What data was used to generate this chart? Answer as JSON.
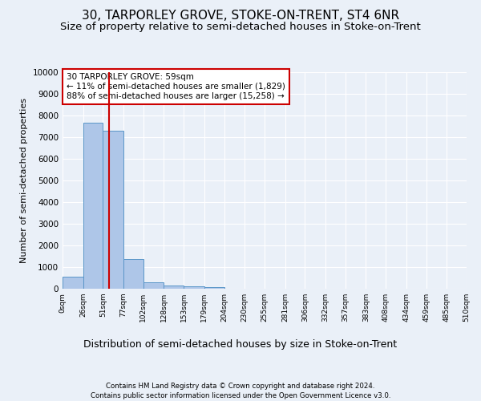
{
  "title1": "30, TARPORLEY GROVE, STOKE-ON-TRENT, ST4 6NR",
  "title2": "Size of property relative to semi-detached houses in Stoke-on-Trent",
  "xlabel": "Distribution of semi-detached houses by size in Stoke-on-Trent",
  "ylabel": "Number of semi-detached properties",
  "footer1": "Contains HM Land Registry data © Crown copyright and database right 2024.",
  "footer2": "Contains public sector information licensed under the Open Government Licence v3.0.",
  "bar_edges": [
    0,
    26,
    51,
    77,
    102,
    128,
    153,
    179,
    204,
    230,
    255,
    281,
    306,
    332,
    357,
    383,
    408,
    434,
    459,
    485,
    510
  ],
  "bar_heights": [
    550,
    7650,
    7280,
    1360,
    310,
    155,
    110,
    80,
    0,
    0,
    0,
    0,
    0,
    0,
    0,
    0,
    0,
    0,
    0,
    0
  ],
  "bar_color": "#aec6e8",
  "bar_edgecolor": "#5a96c8",
  "property_size": 59,
  "vline_color": "#cc0000",
  "annotation_text": "30 TARPORLEY GROVE: 59sqm\n← 11% of semi-detached houses are smaller (1,829)\n88% of semi-detached houses are larger (15,258) →",
  "annotation_box_color": "#ffffff",
  "annotation_border_color": "#cc0000",
  "ylim": [
    0,
    10000
  ],
  "yticks": [
    0,
    1000,
    2000,
    3000,
    4000,
    5000,
    6000,
    7000,
    8000,
    9000,
    10000
  ],
  "bg_color": "#eaf0f8",
  "plot_bg_color": "#eaf0f8",
  "grid_color": "#ffffff",
  "title1_fontsize": 11,
  "title2_fontsize": 9.5,
  "xlabel_fontsize": 9,
  "ylabel_fontsize": 8,
  "annotation_fontsize": 7.5
}
